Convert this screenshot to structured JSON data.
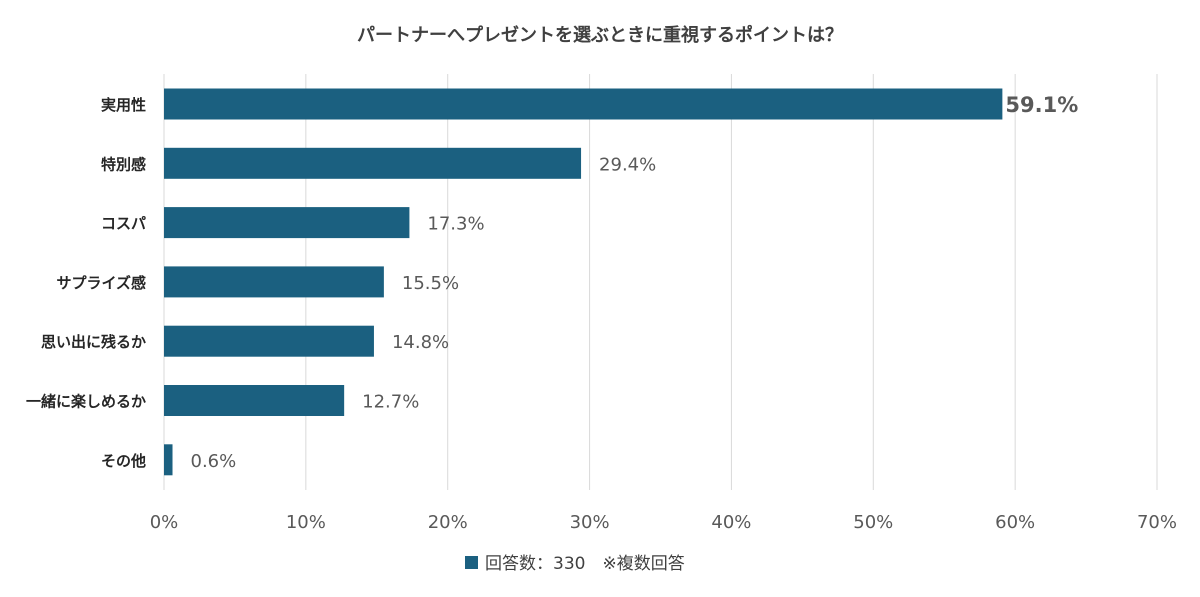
{
  "colors": {
    "bar": "#1b6080",
    "highlight_label": "#ee1111",
    "grid": "#d9d9d9"
  },
  "chart_data": {
    "type": "bar",
    "orientation": "horizontal",
    "title": "パートナーへプレゼントを選ぶときに重視するポイントは？",
    "categories": [
      "実用性",
      "特別感",
      "コスパ",
      "サプライズ感",
      "思い出に残るか",
      "一緒に楽しめるか",
      "その他"
    ],
    "values": [
      59.1,
      29.4,
      17.3,
      15.5,
      14.8,
      12.7,
      0.6
    ],
    "value_labels": [
      "59.1%",
      "29.4%",
      "17.3%",
      "15.5%",
      "14.8%",
      "12.7%",
      "0.6%"
    ],
    "highlight_index": 0,
    "xlim": [
      0,
      70
    ],
    "xticks": [
      0,
      10,
      20,
      30,
      40,
      50,
      60,
      70
    ],
    "xtick_labels": [
      "0%",
      "10%",
      "20%",
      "30%",
      "40%",
      "50%",
      "60%",
      "70%"
    ],
    "xlabel": "",
    "ylabel": "",
    "grid": "vertical",
    "legend": {
      "position": "bottom",
      "label": "回答数：330　※複数回答"
    }
  }
}
